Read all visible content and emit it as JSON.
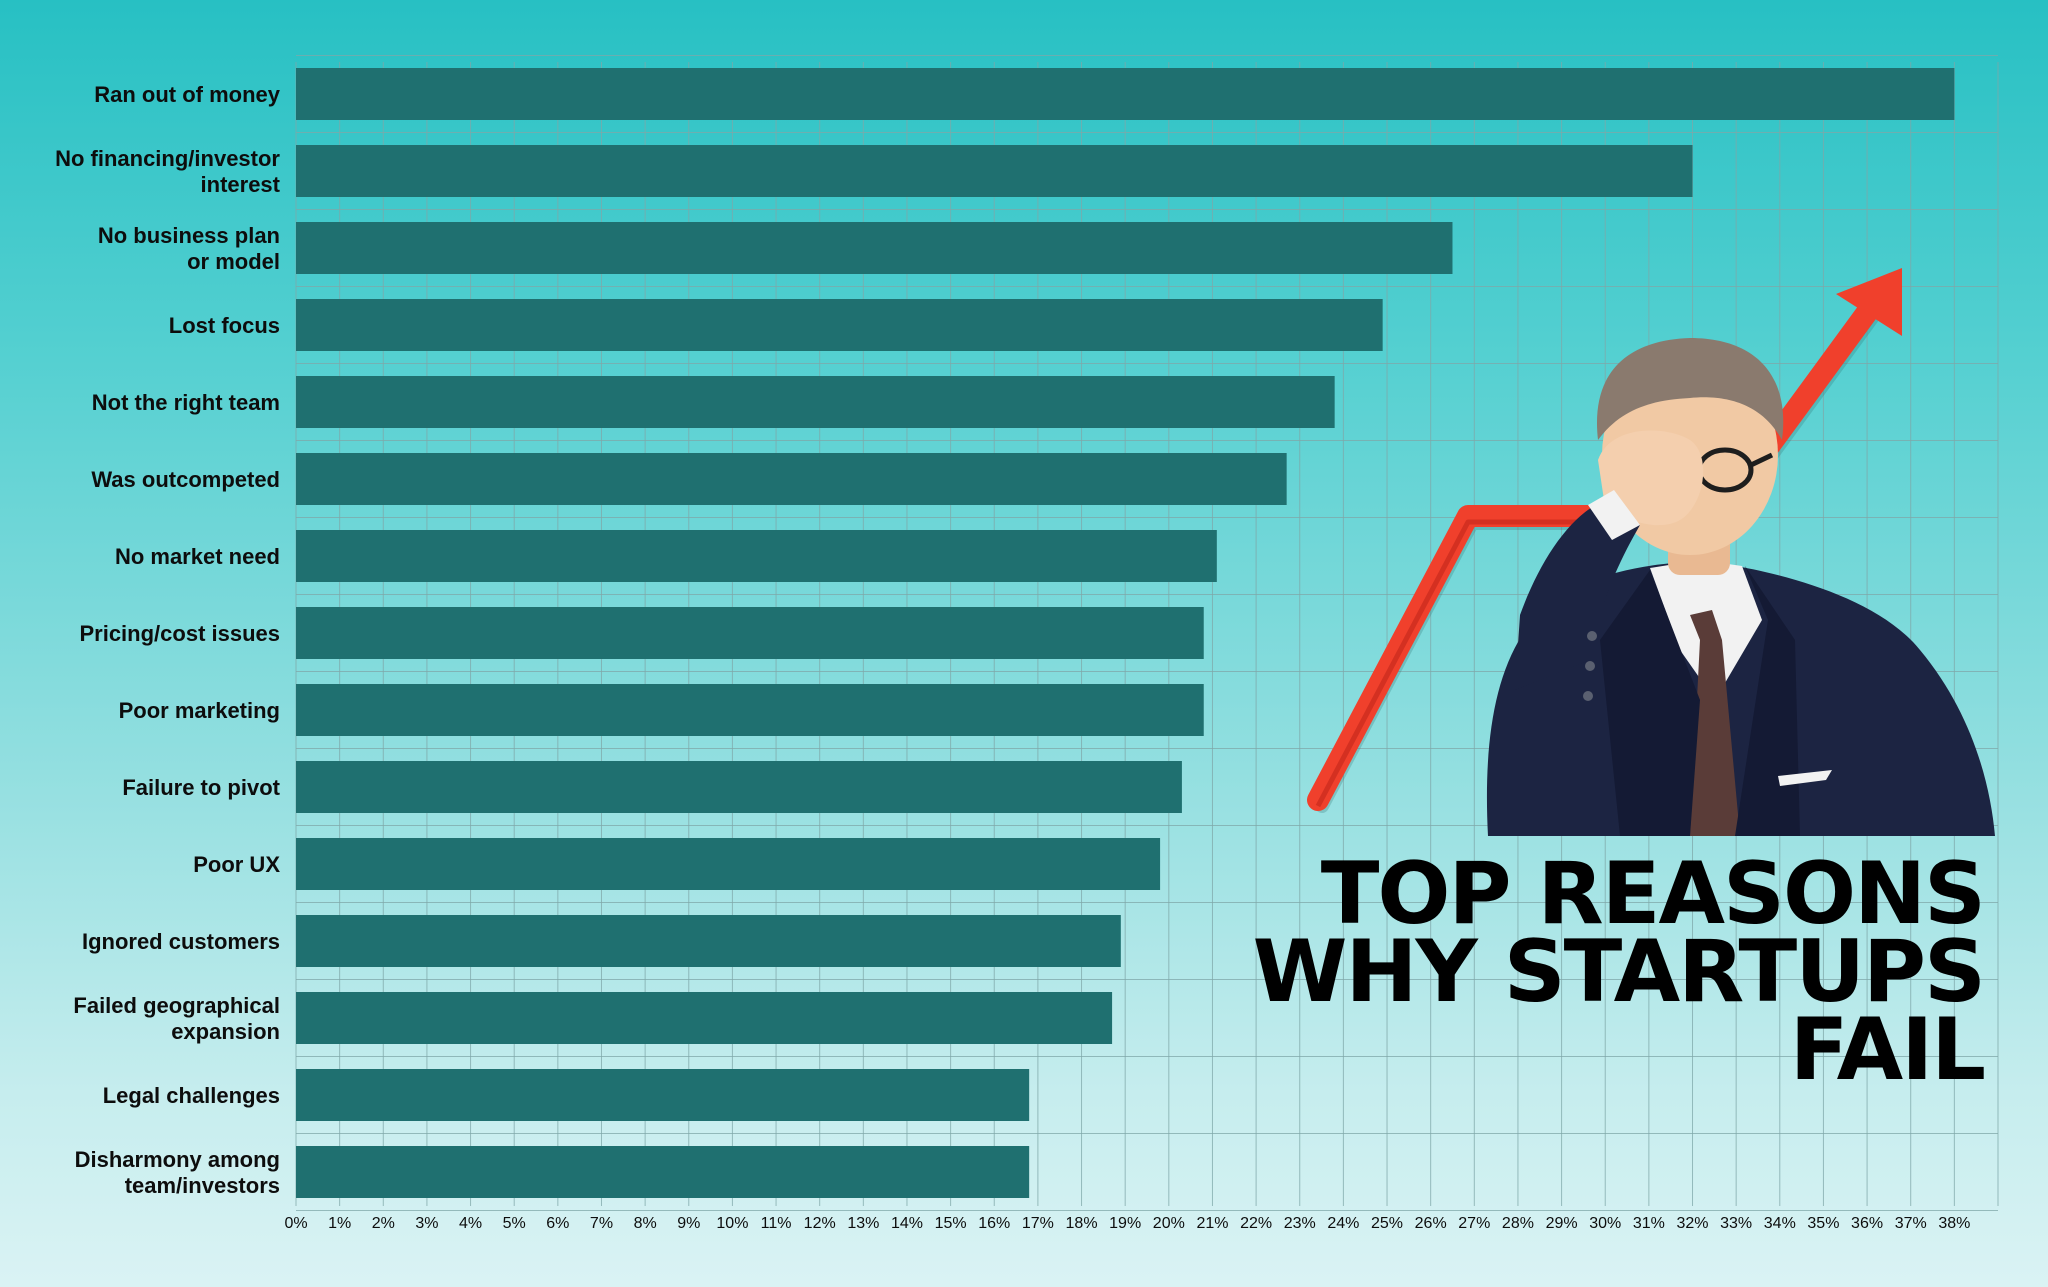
{
  "colors": {
    "bar": "#1f7070",
    "grid": "#7fa7a8",
    "arrow": "#f0402c",
    "arrow_shade": "#c82a1c",
    "suit": "#1c2442",
    "skin": "#f1c9a4",
    "hair": "#8a7a6e",
    "tie": "#5a3c38",
    "shirt": "#f2f2f2"
  },
  "title_lines": [
    "TOP REASONS",
    "WHY STARTUPS",
    "FAIL"
  ],
  "illustration": {
    "figure": "facepalm-businessman",
    "arrow": "red-upward-trend-arrow"
  },
  "chart_data": {
    "type": "bar",
    "orientation": "horizontal",
    "title": "TOP REASONS WHY STARTUPS FAIL",
    "xlabel": "",
    "ylabel": "",
    "categories": [
      "Ran out of money",
      "No financing/investor interest",
      "No business plan or model",
      "Lost focus",
      "Not the right team",
      "Was outcompeted",
      "No market need",
      "Pricing/cost issues",
      "Poor marketing",
      "Failure to pivot",
      "Poor UX",
      "Ignored customers",
      "Failed geographical expansion",
      "Legal challenges",
      "Disharmony among team/investors"
    ],
    "category_label_lines": [
      [
        "Ran out of money"
      ],
      [
        "No financing/investor",
        "interest"
      ],
      [
        "No business plan",
        "or model"
      ],
      [
        "Lost focus"
      ],
      [
        "Not the right team"
      ],
      [
        "Was outcompeted"
      ],
      [
        "No market need"
      ],
      [
        "Pricing/cost issues"
      ],
      [
        "Poor marketing"
      ],
      [
        "Failure to pivot"
      ],
      [
        "Poor UX"
      ],
      [
        "Ignored customers"
      ],
      [
        "Failed geographical",
        "expansion"
      ],
      [
        "Legal challenges"
      ],
      [
        "Disharmony among",
        "team/investors"
      ]
    ],
    "values": [
      38,
      32,
      26.5,
      24.9,
      23.8,
      22.7,
      21.1,
      20.8,
      20.8,
      20.3,
      19.8,
      18.9,
      18.7,
      16.8,
      16.8
    ],
    "xlim": [
      0,
      39
    ],
    "x_ticks": [
      0,
      1,
      2,
      3,
      4,
      5,
      6,
      7,
      8,
      9,
      10,
      11,
      12,
      13,
      14,
      15,
      16,
      17,
      18,
      19,
      20,
      21,
      22,
      23,
      24,
      25,
      26,
      27,
      28,
      29,
      30,
      31,
      32,
      33,
      34,
      35,
      36,
      37,
      38
    ],
    "tick_labels": [
      "0%",
      "1%",
      "2%",
      "3%",
      "4%",
      "5%",
      "6%",
      "7%",
      "8%",
      "9%",
      "10%",
      "11%",
      "12%",
      "13%",
      "14%",
      "15%",
      "16%",
      "17%",
      "18%",
      "19%",
      "20%",
      "21%",
      "22%",
      "23%",
      "24%",
      "25%",
      "26%",
      "27%",
      "28%",
      "29%",
      "30%",
      "31%",
      "32%",
      "33%",
      "34%",
      "35%",
      "36%",
      "37%",
      "38%"
    ],
    "grid": true,
    "legend": "none"
  }
}
